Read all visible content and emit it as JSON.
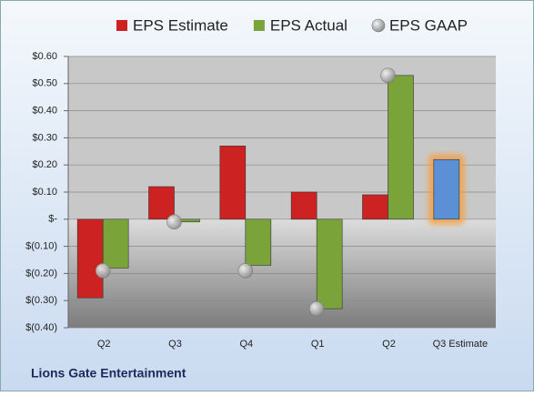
{
  "chart_data": {
    "type": "bar",
    "title": "Lions Gate Entertainment",
    "categories": [
      "Q2",
      "Q3",
      "Q4",
      "Q1",
      "Q2",
      "Q3 Estimate"
    ],
    "series": [
      {
        "name": "EPS Estimate",
        "color": "#cc2222",
        "values": [
          -0.29,
          0.12,
          0.27,
          0.1,
          0.09,
          0.22
        ],
        "highlight_index": 5,
        "highlight_color": "#5b8fd6"
      },
      {
        "name": "EPS Actual",
        "color": "#7aa33a",
        "values": [
          -0.18,
          -0.01,
          -0.17,
          -0.33,
          0.53,
          null
        ]
      },
      {
        "name": "EPS GAAP",
        "color": "#b0b0b0",
        "values": [
          -0.19,
          -0.01,
          -0.19,
          -0.33,
          0.53,
          null
        ],
        "marker": "circle"
      }
    ],
    "ylim": [
      -0.4,
      0.6
    ],
    "yticks": [
      {
        "value": 0.6,
        "label": "$0.60"
      },
      {
        "value": 0.5,
        "label": "$0.50"
      },
      {
        "value": 0.4,
        "label": "$0.40"
      },
      {
        "value": 0.3,
        "label": "$0.30"
      },
      {
        "value": 0.2,
        "label": "$0.20"
      },
      {
        "value": 0.1,
        "label": "$0.10"
      },
      {
        "value": 0,
        "label": "$-"
      },
      {
        "value": -0.1,
        "label": "$(0.10)"
      },
      {
        "value": -0.2,
        "label": "$(0.20)"
      },
      {
        "value": -0.3,
        "label": "$(0.30)"
      },
      {
        "value": -0.4,
        "label": "$(0.40)"
      }
    ],
    "grid": true,
    "legend": "top"
  }
}
